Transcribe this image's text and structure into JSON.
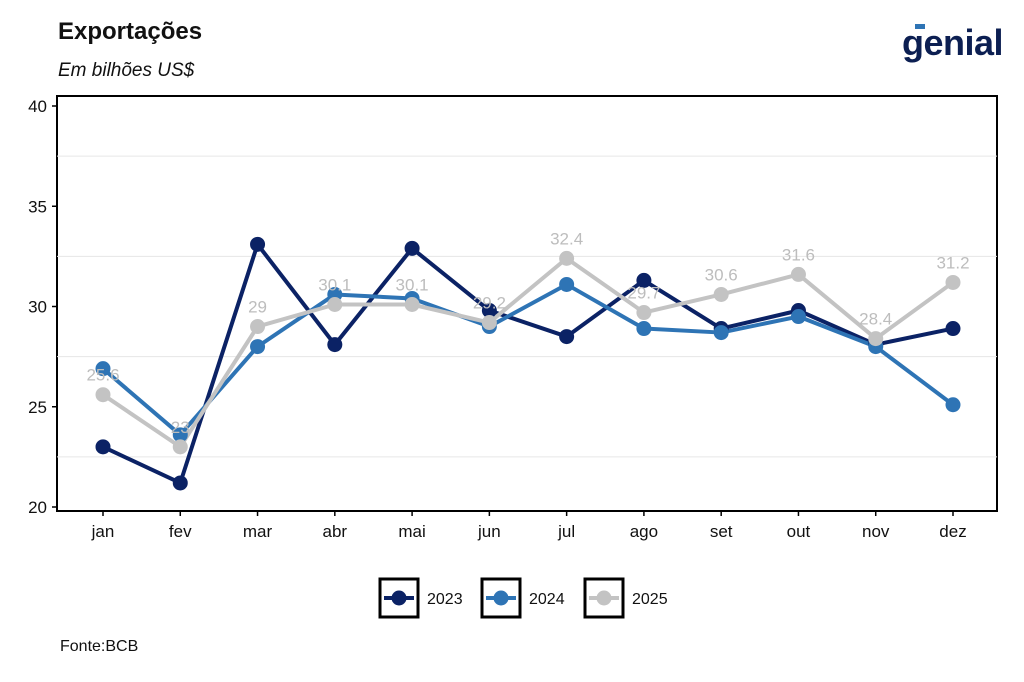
{
  "header": {
    "title": "Exportações",
    "subtitle": "Em bilhões US$",
    "logo_text": "genial"
  },
  "footer": {
    "source": "Fonte:BCB"
  },
  "chart_data": {
    "type": "line",
    "categories": [
      "jan",
      "fev",
      "mar",
      "abr",
      "mai",
      "jun",
      "jul",
      "ago",
      "set",
      "out",
      "nov",
      "dez"
    ],
    "ylim": [
      20,
      40
    ],
    "yticks": [
      20,
      25,
      30,
      35,
      40
    ],
    "grid": true,
    "legend_position": "bottom",
    "series": [
      {
        "name": "2023",
        "color": "#0b2265",
        "values": [
          23.0,
          21.2,
          33.1,
          28.1,
          32.9,
          29.8,
          28.5,
          31.3,
          28.9,
          29.8,
          28.1,
          28.9
        ]
      },
      {
        "name": "2024",
        "color": "#2e74b5",
        "values": [
          26.9,
          23.6,
          28.0,
          30.6,
          30.4,
          29.0,
          31.1,
          28.9,
          28.7,
          29.5,
          28.0,
          25.1
        ]
      },
      {
        "name": "2025",
        "color": "#c3c3c3",
        "values": [
          25.6,
          23.0,
          29.0,
          30.1,
          30.1,
          29.2,
          32.4,
          29.7,
          30.6,
          31.6,
          28.4,
          31.2
        ],
        "data_labels": [
          "25.6",
          "23",
          "29",
          "30.1",
          "30.1",
          "29.2",
          "32.4",
          "29.7",
          "30.6",
          "31.6",
          "28.4",
          "31.2"
        ]
      }
    ]
  }
}
